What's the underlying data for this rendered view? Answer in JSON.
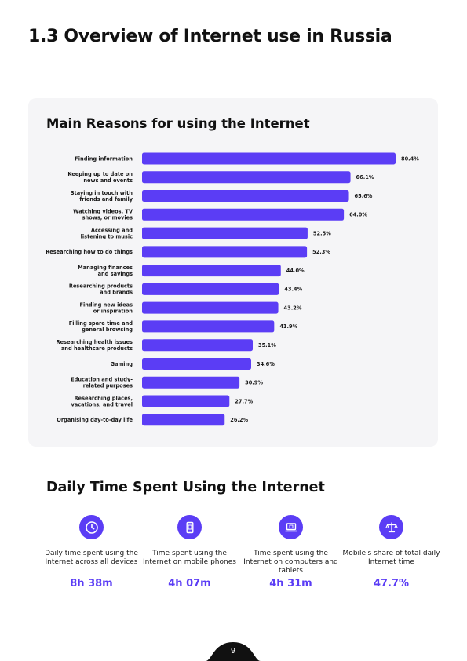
{
  "page_title": "1.3 Overview of Internet use in Russia",
  "chart_data": {
    "type": "bar",
    "orientation": "horizontal",
    "title": "Main Reasons for using the Internet",
    "bar_color": "#5b3df5",
    "xlim": [
      0,
      80.4
    ],
    "categories": [
      [
        "Finding information"
      ],
      [
        "Keeping up to date on",
        "news and events"
      ],
      [
        "Staying in touch with",
        "friends and family"
      ],
      [
        "Watching videos, TV",
        "shows, or movies"
      ],
      [
        "Accessing and",
        "listening to music"
      ],
      [
        "Researching how to do things"
      ],
      [
        "Managing finances",
        "and savings"
      ],
      [
        "Researching products",
        "and brands"
      ],
      [
        "Finding new ideas",
        "or inspiration"
      ],
      [
        "Filling spare time and",
        "general browsing"
      ],
      [
        "Researching health issues",
        "and healthcare products"
      ],
      [
        "Gaming"
      ],
      [
        "Education and study-",
        "related purposes"
      ],
      [
        "Researching places,",
        "vacations, and travel"
      ],
      [
        "Organising day-to-day life"
      ]
    ],
    "values": [
      80.4,
      66.1,
      65.6,
      64.0,
      52.5,
      52.3,
      44.0,
      43.4,
      43.2,
      41.9,
      35.1,
      34.6,
      30.9,
      27.7,
      26.2
    ],
    "value_labels": [
      "80.4%",
      "66.1%",
      "65.6%",
      "64.0%",
      "52.5%",
      "52.3%",
      "44.0%",
      "43.4%",
      "43.2%",
      "41.9%",
      "35.1%",
      "34.6%",
      "30.9%",
      "27.7%",
      "26.2%"
    ]
  },
  "section2_title": "Daily Time Spent Using the Internet",
  "accent_color": "#5b3df5",
  "stats": [
    {
      "icon": "clock-icon",
      "desc": "Daily time spent using the Internet across all devices",
      "value": "8h 38m"
    },
    {
      "icon": "mobile-phone-icon",
      "desc": "Time spent using the Internet on mobile phones",
      "value": "4h 07m"
    },
    {
      "icon": "laptop-icon",
      "desc": "Time spent using the Internet on computers and tablets",
      "value": "4h 31m"
    },
    {
      "icon": "scales-icon",
      "desc": "Mobile's share of total daily Internet time",
      "value": "47.7%"
    }
  ],
  "page_number": "9"
}
